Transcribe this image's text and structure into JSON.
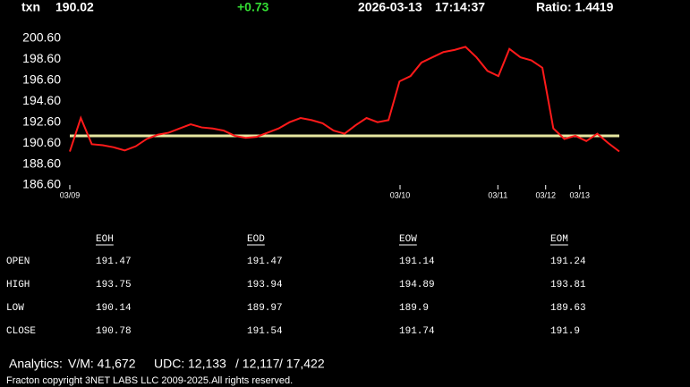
{
  "header": {
    "symbol": "txn",
    "price": "190.02",
    "change": "+0.73",
    "date": "2026-03-13",
    "time": "17:14:37",
    "ratio": "Ratio: 1.4419"
  },
  "chart_data": {
    "type": "line",
    "x": [
      0,
      2,
      4,
      6,
      8,
      10,
      12,
      14,
      16,
      18,
      20,
      22,
      24,
      26,
      28,
      30,
      32,
      34,
      36,
      38,
      40,
      42,
      44,
      46,
      48,
      50,
      52,
      54,
      56,
      58,
      60,
      62,
      64,
      66,
      68,
      70,
      72,
      74,
      76,
      78,
      80,
      82,
      84,
      86,
      88,
      90,
      92,
      94,
      96,
      98,
      100
    ],
    "series": [
      {
        "color": "#ff1a1a",
        "values": [
          189.8,
          193.0,
          190.5,
          190.4,
          190.2,
          189.9,
          190.3,
          191.0,
          191.4,
          191.6,
          192.0,
          192.4,
          192.1,
          192.0,
          191.8,
          191.3,
          191.1,
          191.2,
          191.6,
          192.0,
          192.6,
          193.0,
          192.8,
          192.5,
          191.8,
          191.5,
          192.3,
          193.0,
          192.6,
          192.8,
          196.5,
          197.0,
          198.3,
          198.8,
          199.3,
          199.5,
          199.8,
          198.8,
          197.5,
          197.0,
          199.6,
          198.8,
          198.5,
          197.8,
          192.0,
          191.0,
          191.3,
          190.8,
          191.5,
          190.6,
          189.8
        ]
      }
    ],
    "reference_line": {
      "value": 191.3,
      "color": "#e6e6a0"
    },
    "xlim": [
      0,
      100
    ],
    "xticks": [
      {
        "value": 0,
        "label": "03/09"
      },
      {
        "value": 60.1,
        "label": "03/10"
      },
      {
        "value": 77.9,
        "label": "03/11"
      },
      {
        "value": 86.6,
        "label": "03/12"
      },
      {
        "value": 92.8,
        "label": "03/13"
      }
    ],
    "ylim": [
      186.6,
      200.6
    ],
    "yticks": [
      {
        "value": 186.6,
        "label": "186.60"
      },
      {
        "value": 188.6,
        "label": "188.60"
      },
      {
        "value": 190.6,
        "label": "190.60"
      },
      {
        "value": 192.6,
        "label": "192.60"
      },
      {
        "value": 194.6,
        "label": "194.60"
      },
      {
        "value": 196.6,
        "label": "196.60"
      },
      {
        "value": 198.6,
        "label": "198.60"
      },
      {
        "value": 200.6,
        "label": "200.60"
      }
    ]
  },
  "table": {
    "columns": [
      "EOH",
      "EOD",
      "EOW",
      "EOM"
    ],
    "rows": [
      [
        "OPEN",
        "191.47",
        "191.47",
        "191.14",
        "191.24"
      ],
      [
        "HIGH",
        "193.75",
        "193.94",
        "194.89",
        "193.81"
      ],
      [
        "LOW",
        "190.14",
        "189.97",
        "189.9",
        "189.63"
      ],
      [
        "CLOSE",
        "190.78",
        "191.54",
        "191.74",
        "191.9"
      ]
    ]
  },
  "analytics": {
    "label": "Analytics:",
    "vm": "V/M: 41,672",
    "udc": "UDC:",
    "udc1": "12,133",
    "udc2": "/ 12,117",
    "udc3": "/ 17,422"
  },
  "footer": "Fracton copyright 3NET LABS LLC 2009-2025.All rights reserved."
}
